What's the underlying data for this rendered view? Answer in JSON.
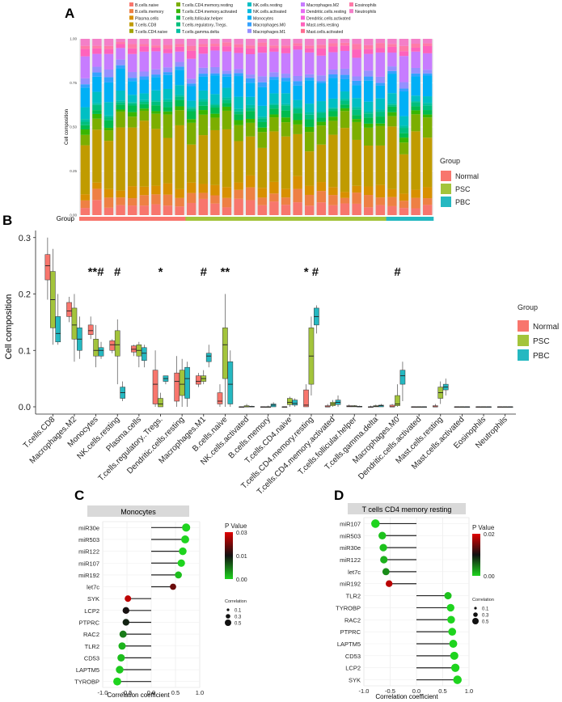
{
  "panels": {
    "A": "A",
    "B": "B",
    "C": "C",
    "D": "D"
  },
  "chart_data": [
    {
      "panel": "A",
      "type": "bar",
      "stacked": true,
      "ylabel": "Cell composition",
      "yticks": [
        "0.00",
        "0.25",
        "0.50",
        "0.75",
        "1.00"
      ],
      "ylim": [
        0,
        1
      ],
      "legend_entries": [
        "B cells naive",
        "B cells memory",
        "Plasma cells",
        "T cells CD8",
        "T cells CD4 naive",
        "T cells CD4 memory resting",
        "T cells CD4 memory activated",
        "T cells follicular helper",
        "T cells regulatory Tregs",
        "T cells gamma delta",
        "NK cells resting",
        "NK cells activated",
        "Monocytes",
        "Macrophages M0",
        "Macrophages M1",
        "Macrophages M2",
        "Dendritic cells resting",
        "Dendritic cells activated",
        "Mast cells resting",
        "Mast cells activated",
        "Eosinophils",
        "Neutrophils"
      ],
      "legend_colors": [
        "#f8766d",
        "#ee8044",
        "#d89000",
        "#c09b00",
        "#a3a500",
        "#7cae00",
        "#39b600",
        "#00bb4e",
        "#00bf7d",
        "#00c1a3",
        "#00bfc4",
        "#00bae0",
        "#00b0f6",
        "#35a2ff",
        "#9590ff",
        "#c77cff",
        "#e76bf3",
        "#fa62db",
        "#ff62bc",
        "#ff6c91",
        "#ff7aa8",
        "#f47fc8"
      ],
      "sample_groups": [
        "Normal",
        "Normal",
        "Normal",
        "Normal",
        "Normal",
        "Normal",
        "Normal",
        "Normal",
        "Normal",
        "PSC",
        "PSC",
        "PSC",
        "PSC",
        "PSC",
        "PSC",
        "PSC",
        "PSC",
        "PSC",
        "PSC",
        "PSC",
        "PSC",
        "PSC",
        "PSC",
        "PSC",
        "PSC",
        "PSC",
        "PBC",
        "PBC",
        "PBC",
        "PBC"
      ],
      "group_label": "Group",
      "group_legend_title": "Group",
      "groups": [
        "Normal",
        "PSC",
        "PBC"
      ],
      "group_colors": [
        "#f8766d",
        "#a3c43b",
        "#25b8c1"
      ]
    },
    {
      "panel": "B",
      "type": "box",
      "ylabel": "Cell composition",
      "yticks": [
        "0.0",
        "0.1",
        "0.2",
        "0.3"
      ],
      "ylim": [
        -0.01,
        0.33
      ],
      "legend_title": "Group",
      "groups": [
        "Normal",
        "PSC",
        "PBC"
      ],
      "group_colors": [
        "#f8766d",
        "#a3c43b",
        "#25b8c1"
      ],
      "categories": [
        "T.cells.CD8",
        "Macrophages.M2",
        "Monocytes",
        "NK.cells.resting",
        "Plasma.cells",
        "T.cells.regulatory..Tregs.",
        "Dendritic.cells.resting",
        "Macrophages.M1",
        "B.cells.naive",
        "NK.cells.activated",
        "B.cells.memory",
        "T.cells.CD4.naive",
        "T.cells.CD4.memory.resting",
        "T.cells.CD4.memory.activated",
        "T.cells.follicular.helper",
        "T.cells.gamma.delta",
        "Macrophages.M0",
        "Dendritic.cells.activated",
        "Mast.cells.resting",
        "Mast.cells.activated",
        "Eosinophils",
        "Neutrophils"
      ],
      "annotations": [
        {
          "category": "Monocytes",
          "text": "**#"
        },
        {
          "category": "NK.cells.resting",
          "text": "#"
        },
        {
          "category": "T.cells.regulatory..Tregs.",
          "text": "*"
        },
        {
          "category": "Macrophages.M1",
          "text": "#"
        },
        {
          "category": "B.cells.naive",
          "text": "**"
        },
        {
          "category": "T.cells.CD4.memory.resting",
          "text": "* #"
        },
        {
          "category": "Macrophages.M0",
          "text": "#"
        }
      ],
      "boxes": [
        [
          [
            0.19,
            0.225,
            0.25,
            0.27,
            0.3
          ],
          [
            0.11,
            0.14,
            0.19,
            0.24,
            0.28
          ],
          [
            0.11,
            0.115,
            0.13,
            0.16,
            0.2
          ]
        ],
        [
          [
            0.15,
            0.16,
            0.17,
            0.185,
            0.195
          ],
          [
            0.08,
            0.12,
            0.145,
            0.175,
            0.2
          ],
          [
            0.085,
            0.1,
            0.12,
            0.14,
            0.16
          ]
        ],
        [
          [
            0.12,
            0.128,
            0.135,
            0.145,
            0.16
          ],
          [
            0.07,
            0.09,
            0.1,
            0.12,
            0.145
          ],
          [
            0.085,
            0.09,
            0.1,
            0.105,
            0.115
          ]
        ],
        [
          [
            0.095,
            0.1,
            0.11,
            0.117,
            0.12
          ],
          [
            0.04,
            0.09,
            0.11,
            0.135,
            0.155
          ],
          [
            0.01,
            0.015,
            0.025,
            0.035,
            0.045
          ]
        ],
        [
          [
            0.09,
            0.097,
            0.102,
            0.108,
            0.11
          ],
          [
            0.07,
            0.09,
            0.1,
            0.11,
            0.115
          ],
          [
            0.07,
            0.082,
            0.095,
            0.105,
            0.11
          ]
        ],
        [
          [
            0.0,
            0.005,
            0.04,
            0.065,
            0.1
          ],
          [
            0.0,
            0.0,
            0.005,
            0.015,
            0.025
          ],
          [
            0.04,
            0.045,
            0.05,
            0.055,
            0.055
          ]
        ],
        [
          [
            0.0,
            0.01,
            0.045,
            0.06,
            0.09
          ],
          [
            0.0,
            0.02,
            0.04,
            0.065,
            0.085
          ],
          [
            0.0,
            0.015,
            0.05,
            0.07,
            0.08
          ]
        ],
        [
          [
            0.035,
            0.04,
            0.045,
            0.055,
            0.06
          ],
          [
            0.04,
            0.045,
            0.05,
            0.055,
            0.065
          ],
          [
            0.07,
            0.08,
            0.09,
            0.095,
            0.11
          ]
        ],
        [
          [
            0.0,
            0.005,
            0.01,
            0.025,
            0.04
          ],
          [
            0.0,
            0.05,
            0.11,
            0.14,
            0.2
          ],
          [
            0.0,
            0.005,
            0.04,
            0.08,
            0.1
          ]
        ],
        [
          [
            0.0,
            0.0,
            0.0,
            0.0,
            0.0
          ],
          [
            0.0,
            0.0,
            0.0,
            0.002,
            0.005
          ],
          [
            0.0,
            0.0,
            0.0,
            0.001,
            0.002
          ]
        ],
        [
          [
            0.0,
            0.0,
            0.0,
            0.0,
            0.0
          ],
          [
            0.0,
            0.0,
            0.0,
            0.0,
            0.002
          ],
          [
            0.0,
            0.0,
            0.003,
            0.005,
            0.008
          ]
        ],
        [
          [
            0.0,
            0.0,
            0.0,
            0.0,
            0.0
          ],
          [
            0.0,
            0.004,
            0.008,
            0.015,
            0.018
          ],
          [
            0.0,
            0.003,
            0.006,
            0.012,
            0.015
          ]
        ],
        [
          [
            0.0,
            0.0,
            0.003,
            0.03,
            0.04
          ],
          [
            0.02,
            0.04,
            0.09,
            0.14,
            0.16
          ],
          [
            0.13,
            0.145,
            0.16,
            0.175,
            0.18
          ]
        ],
        [
          [
            0.0,
            0.0,
            0.0,
            0.002,
            0.005
          ],
          [
            0.0,
            0.002,
            0.005,
            0.008,
            0.012
          ],
          [
            0.0,
            0.004,
            0.008,
            0.012,
            0.02
          ]
        ],
        [
          [
            0.0,
            0.0,
            0.001,
            0.002,
            0.004
          ],
          [
            0.0,
            0.0,
            0.001,
            0.002,
            0.003
          ],
          [
            0.0,
            0.0,
            0.0,
            0.001,
            0.002
          ]
        ],
        [
          [
            0.0,
            0.0,
            0.0,
            0.0,
            0.002
          ],
          [
            0.0,
            0.0,
            0.001,
            0.002,
            0.004
          ],
          [
            0.0,
            0.0,
            0.002,
            0.003,
            0.005
          ]
        ],
        [
          [
            0.0,
            0.0,
            0.0,
            0.003,
            0.005
          ],
          [
            0.0,
            0.002,
            0.005,
            0.02,
            0.04
          ],
          [
            0.01,
            0.04,
            0.055,
            0.065,
            0.08
          ]
        ],
        [
          [
            0.0,
            0.0,
            0.0,
            0.0,
            0.0
          ],
          [
            0.0,
            0.0,
            0.0,
            0.0,
            0.0
          ],
          [
            0.0,
            0.0,
            0.0,
            0.0,
            0.0
          ]
        ],
        [
          [
            0.0,
            0.0,
            0.0,
            0.002,
            0.005
          ],
          [
            0.005,
            0.015,
            0.025,
            0.035,
            0.045
          ],
          [
            0.02,
            0.03,
            0.035,
            0.04,
            0.05
          ]
        ],
        [
          [
            0.0,
            0.0,
            0.0,
            0.0,
            0.0
          ],
          [
            0.0,
            0.0,
            0.0,
            0.0,
            0.0
          ],
          [
            0.0,
            0.0,
            0.0,
            0.0,
            0.0
          ]
        ],
        [
          [
            0.0,
            0.0,
            0.0,
            0.0,
            0.0
          ],
          [
            0.0,
            0.0,
            0.0,
            0.0,
            0.0
          ],
          [
            0.0,
            0.0,
            0.0,
            0.0,
            0.0
          ]
        ],
        [
          [
            0.0,
            0.0,
            0.0,
            0.0,
            0.0
          ],
          [
            0.0,
            0.0,
            0.0,
            0.0,
            0.0
          ],
          [
            0.0,
            0.0,
            0.0,
            0.0,
            0.0
          ]
        ]
      ]
    },
    {
      "panel": "C",
      "type": "lollipop",
      "title": "Monocytes",
      "xlabel": "Correlation coefficient",
      "xticks": [
        "-1.0",
        "-0.5",
        "0.0",
        "0.5",
        "1.0"
      ],
      "xlim": [
        -1.0,
        1.0
      ],
      "genes": [
        "miR30e",
        "miR503",
        "miR122",
        "miR107",
        "miR192",
        "let7c",
        "SYK",
        "LCP2",
        "PTPRC",
        "RAC2",
        "TLR2",
        "CD53",
        "LAPTM5",
        "TYROBP"
      ],
      "correlation": [
        0.72,
        0.7,
        0.65,
        0.62,
        0.56,
        0.45,
        -0.48,
        -0.52,
        -0.52,
        -0.58,
        -0.6,
        -0.62,
        -0.65,
        -0.7
      ],
      "p_value": [
        0.0,
        0.0,
        0.0,
        0.0,
        0.002,
        0.025,
        0.032,
        0.018,
        0.016,
        0.008,
        0.003,
        0.002,
        0.001,
        0.0
      ],
      "legend_p_title": "P Value",
      "legend_p_ticks": [
        "0.03",
        "0.01",
        "0.00"
      ],
      "legend_size_title": "Correlation",
      "legend_size_values": [
        "0.1",
        "0.3",
        "0.5"
      ]
    },
    {
      "panel": "D",
      "type": "lollipop",
      "title": "T cells CD4 memory resting",
      "xlabel": "Correlation coefficient",
      "xticks": [
        "-1.0",
        "-0.5",
        "0.0",
        "0.5",
        "1.0"
      ],
      "xlim": [
        -1.0,
        1.0
      ],
      "genes": [
        "miR107",
        "miR503",
        "miR30e",
        "miR122",
        "let7c",
        "miR192",
        "TLR2",
        "TYROBP",
        "RAC2",
        "PTPRC",
        "LAPTM5",
        "CD53",
        "LCP2",
        "SYK"
      ],
      "correlation": [
        -0.78,
        -0.65,
        -0.63,
        -0.62,
        -0.58,
        -0.52,
        0.6,
        0.65,
        0.66,
        0.68,
        0.7,
        0.72,
        0.74,
        0.78
      ],
      "p_value": [
        0.0,
        0.001,
        0.001,
        0.002,
        0.004,
        0.02,
        0.001,
        0.0,
        0.0,
        0.0,
        0.0,
        0.0,
        0.0,
        0.0
      ],
      "legend_p_title": "P Value",
      "legend_p_ticks": [
        "0.02",
        "0.00"
      ],
      "legend_size_title": "Correlation",
      "legend_size_values": [
        "0.1",
        "0.3",
        "0.5"
      ]
    }
  ]
}
